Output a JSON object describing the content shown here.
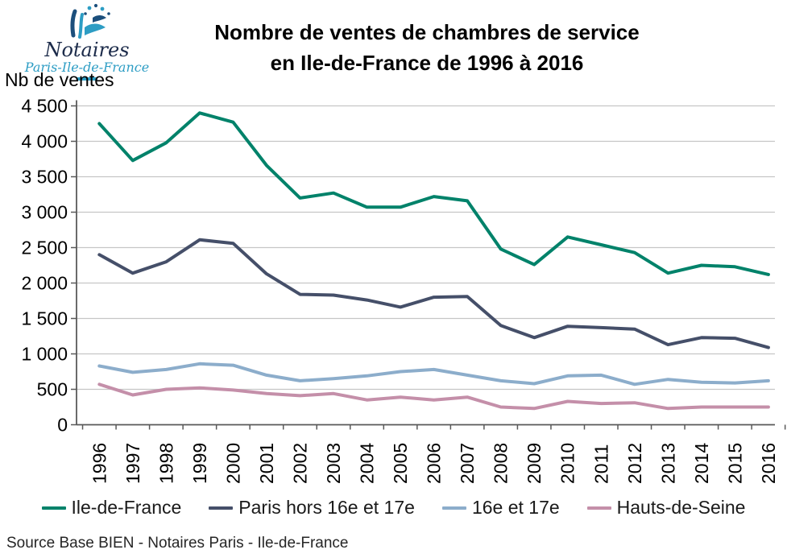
{
  "logo": {
    "title": "Notaires",
    "subtitle": "Paris-Ile-de-France"
  },
  "title": {
    "line1": "Nombre de ventes de chambres de service",
    "line2": "en Ile-de-France de 1996 à 2016"
  },
  "y_axis_unit": "Nb de ventes",
  "source": "Source Base BIEN - Notaires Paris - Ile-de-France",
  "colors": {
    "ile_de_france": "#00826a",
    "paris_hors": "#454f69",
    "seizieme": "#8cadcb",
    "hauts_de_seine": "#c48fa9",
    "gridline": "#c6c6c6",
    "axis": "#595959",
    "logo_navy": "#1c4f7c",
    "logo_cyan": "#2d9dc4"
  },
  "chart_data": {
    "type": "line",
    "x": [
      1996,
      1997,
      1998,
      1999,
      2000,
      2001,
      2002,
      2003,
      2004,
      2005,
      2006,
      2007,
      2008,
      2009,
      2010,
      2011,
      2012,
      2013,
      2014,
      2015,
      2016
    ],
    "series": [
      {
        "name": "Ile-de-France",
        "color": "#00826a",
        "values": [
          4250,
          3730,
          3980,
          4400,
          4270,
          3660,
          3200,
          3270,
          3070,
          3070,
          3220,
          3160,
          2480,
          2260,
          2650,
          2540,
          2430,
          2140,
          2250,
          2230,
          2120
        ]
      },
      {
        "name": "Paris hors 16e et 17e",
        "color": "#454f69",
        "values": [
          2400,
          2140,
          2300,
          2610,
          2560,
          2130,
          1840,
          1830,
          1760,
          1660,
          1800,
          1810,
          1400,
          1230,
          1390,
          1370,
          1350,
          1130,
          1230,
          1220,
          1090
        ]
      },
      {
        "name": "16e et 17e",
        "color": "#8cadcb",
        "values": [
          830,
          740,
          780,
          860,
          840,
          700,
          620,
          650,
          690,
          750,
          780,
          700,
          620,
          580,
          690,
          700,
          570,
          640,
          600,
          590,
          620
        ]
      },
      {
        "name": "Hauts-de-Seine",
        "color": "#c48fa9",
        "values": [
          570,
          420,
          500,
          520,
          490,
          440,
          410,
          440,
          350,
          390,
          350,
          390,
          250,
          230,
          330,
          300,
          310,
          230,
          250,
          250,
          250
        ]
      }
    ],
    "title": "Nombre de ventes de chambres de service en Ile-de-France de 1996 à 2016",
    "xlabel": "",
    "ylabel": "Nb de ventes",
    "ylim": [
      0,
      4500
    ],
    "y_tick_step": 500,
    "grid": true,
    "legend_position": "bottom"
  }
}
